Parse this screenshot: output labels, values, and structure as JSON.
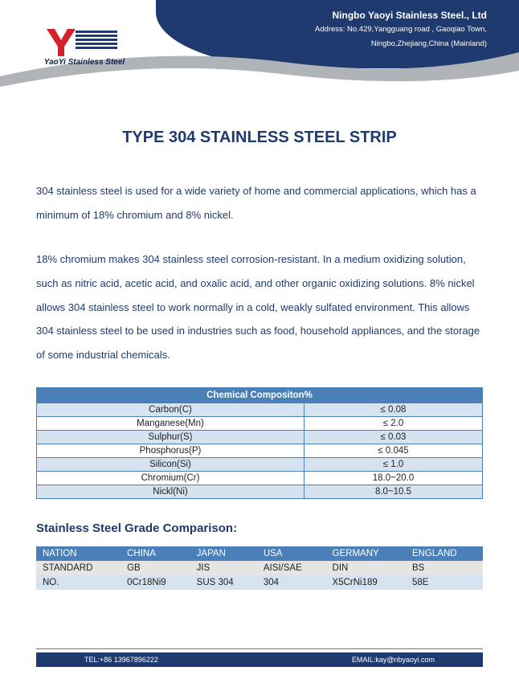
{
  "header": {
    "company": "Ningbo Yaoyi Stainless Steel., Ltd",
    "address1": "Address: No.429,Yangguang road , Gaoqiao Town,",
    "address2": "Ningbo,Zhejiang,China (Mainland)",
    "logo_text": "YaoYi Stainless Steel",
    "bg_color": "#1f3a6e",
    "swoosh_color": "#b0b3b8",
    "logo_red": "#d4202a",
    "logo_blue": "#1f3a6e"
  },
  "title": "TYPE 304 STAINLESS STEEL STRIP",
  "title_color": "#1f3a6e",
  "text_color": "#1f3a6e",
  "para1": "304 stainless steel is used for a wide variety of home and commercial applications, which has a minimum of 18% chromium and 8% nickel.",
  "para2": "18% chromium makes 304 stainless steel corrosion-resistant. In a medium oxidizing solution, such as nitric acid, acetic acid, and oxalic acid, and other organic oxidizing solutions. 8% nickel allows 304 stainless steel to work normally in a cold, weakly sulfated environment. This allows 304 stainless steel to be used in industries such as food, household appliances, and the storage of some industrial chemicals.",
  "table1": {
    "header": "Chemical Compositon%",
    "header_bg": "#4a7fb8",
    "header_fg": "#ffffff",
    "alt_bg_a": "#d5e2ef",
    "alt_bg_b": "#ffffff",
    "border_color": "#4a7fb8",
    "rows": [
      {
        "name": "Carbon(C)",
        "value": "≤ 0.08"
      },
      {
        "name": "Manganese(Mn)",
        "value": "≤ 2.0"
      },
      {
        "name": "Sulphur(S)",
        "value": "≤ 0.03"
      },
      {
        "name": "Phosphorus(P)",
        "value": "≤ 0.045"
      },
      {
        "name": "Silicon(Si)",
        "value": "≤ 1.0"
      },
      {
        "name": "Chromium(Cr)",
        "value": "18.0~20.0"
      },
      {
        "name": "Nickl(Ni)",
        "value": "8.0~10.5"
      }
    ]
  },
  "section2_title": "Stainless Steel Grade Comparison:",
  "table2": {
    "header_bg": "#4a7fb8",
    "header_fg": "#ffffff",
    "row_a_bg": "#e5e5e5",
    "row_b_bg": "#d5e2ef",
    "columns": [
      "NATION",
      "CHINA",
      "JAPAN",
      "USA",
      "GERMANY",
      "ENGLAND"
    ],
    "rows": [
      [
        "STANDARD",
        "GB",
        "JIS",
        "AISI/SAE",
        "DIN",
        "BS"
      ],
      [
        "NO.",
        "0Cr18Ni9",
        "SUS 304",
        "304",
        "X5CrNi189",
        "58E"
      ]
    ]
  },
  "footer": {
    "tel": "TEL:+86 13967896222",
    "email": "EMAIL:kay@nbyaoyi.com",
    "bg_color": "#1f3a6e"
  }
}
